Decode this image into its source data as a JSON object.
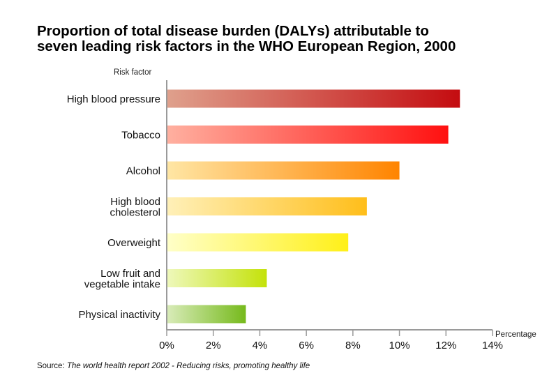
{
  "chart_data": {
    "type": "bar",
    "orientation": "horizontal",
    "title": [
      "Proportion of total disease burden (DALYs) attributable to",
      "seven leading risk factors in the WHO European Region, 2000"
    ],
    "ylabel": "Risk factor",
    "xlabel": "Percentage",
    "xlim": [
      0,
      14
    ],
    "xticks": [
      "0%",
      "2%",
      "4%",
      "6%",
      "8%",
      "10%",
      "12%",
      "14%"
    ],
    "grid": false,
    "legend": "none",
    "categories": [
      [
        "High blood pressure"
      ],
      [
        "Tobacco"
      ],
      [
        "Alcohol"
      ],
      [
        "High blood",
        "cholesterol"
      ],
      [
        "Overweight"
      ],
      [
        "Low fruit and",
        "vegetable intake"
      ],
      [
        "Physical inactivity"
      ]
    ],
    "values": [
      12.6,
      12.1,
      10.0,
      8.6,
      7.8,
      4.3,
      3.4
    ],
    "colors": [
      [
        "#dfa08c",
        "#c40c10"
      ],
      [
        "#ffb0a0",
        "#ff1010"
      ],
      [
        "#ffe6a4",
        "#ff8400"
      ],
      [
        "#fff0b8",
        "#ffbe1a"
      ],
      [
        "#ffffc8",
        "#fff018"
      ],
      [
        "#eef8ba",
        "#c4e20a"
      ],
      [
        "#d8ebb8",
        "#76ba1c"
      ]
    ]
  },
  "source": {
    "prefix": "Source: ",
    "text": "The world health report 2002 - Reducing risks, promoting healthy life"
  }
}
